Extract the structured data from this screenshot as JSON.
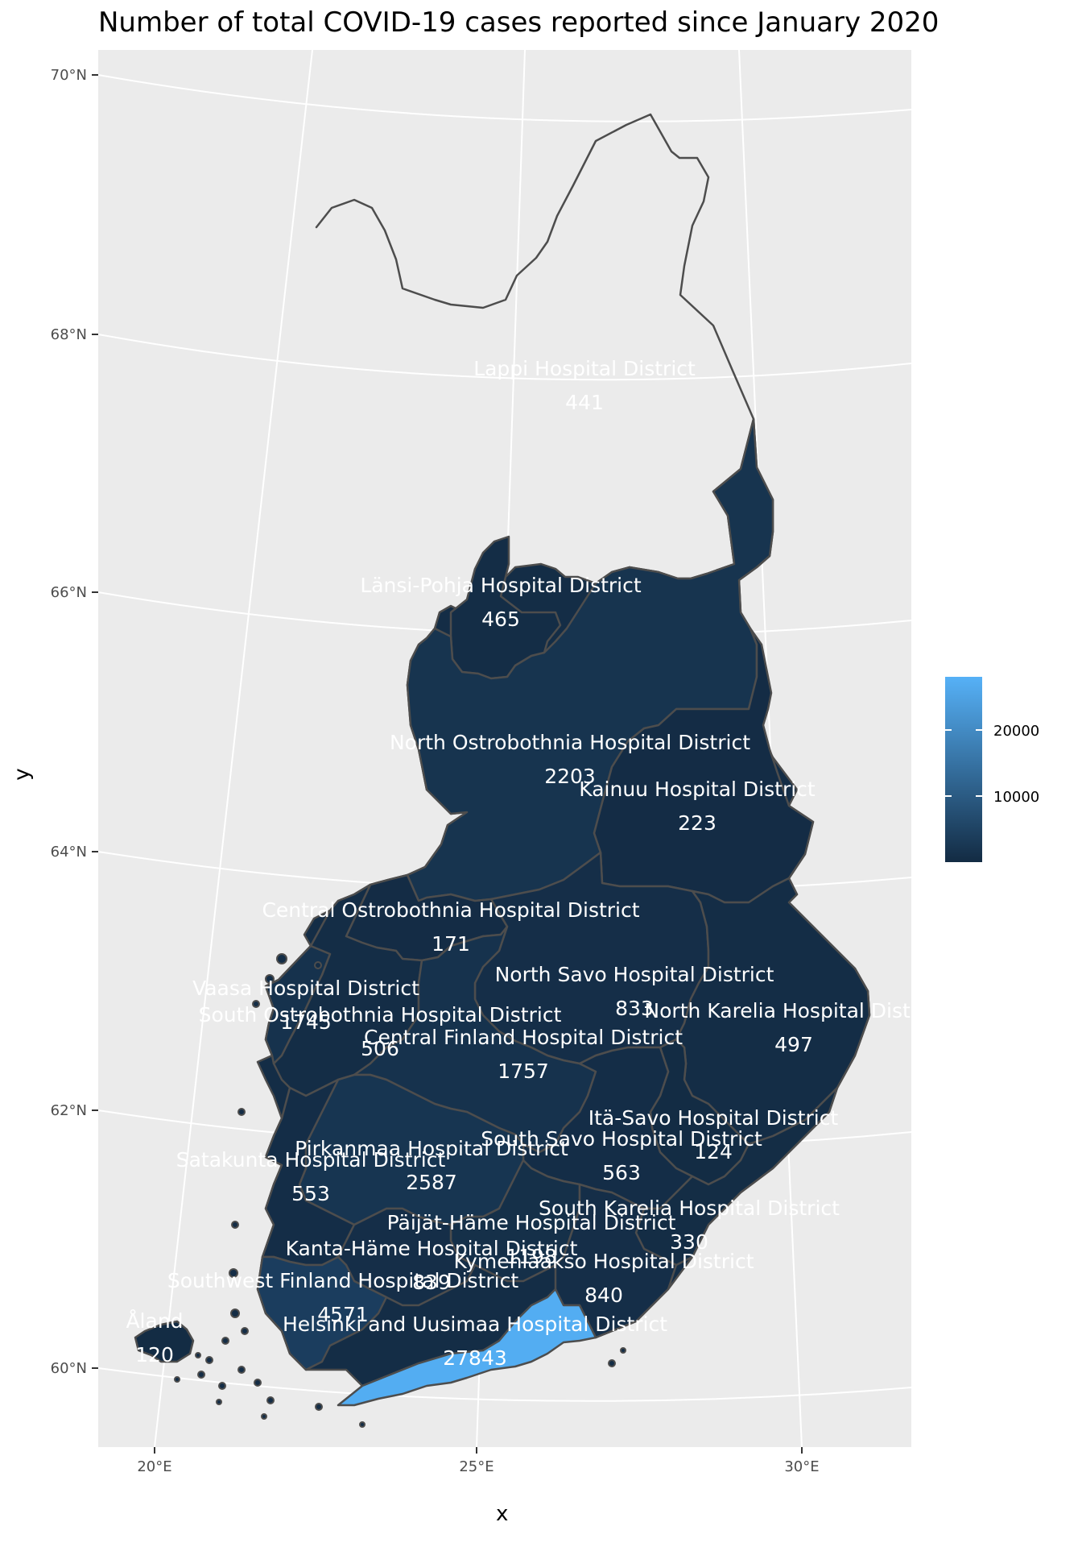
{
  "title": "Number of total COVID-19 cases reported since January 2020",
  "axes": {
    "x_title": "x",
    "y_title": "y",
    "x_ticks": [
      "20°E",
      "25°E",
      "30°E"
    ],
    "y_ticks": [
      "70°N",
      "68°N",
      "66°N",
      "64°N",
      "62°N",
      "60°N"
    ]
  },
  "colors": {
    "panel_background": "#ebebeb",
    "grid": "#ffffff",
    "border": "#4d4d4d",
    "scale_low": "#132b43",
    "scale_high": "#56b1f7"
  },
  "legend": {
    "ticks": [
      "20000",
      "10000"
    ],
    "placement": "right"
  },
  "regions": [
    {
      "id": "lappi",
      "name": "Lappi Hospital District",
      "cases": "441",
      "color": "#142d46"
    },
    {
      "id": "lansi-pohja",
      "name": "Länsi-Pohja Hospital District",
      "cases": "465",
      "color": "#142d46"
    },
    {
      "id": "north-ostrobothnia",
      "name": "North Ostrobothnia Hospital District",
      "cases": "2203",
      "color": "#17344f"
    },
    {
      "id": "kainuu",
      "name": "Kainuu Hospital District",
      "cases": "223",
      "color": "#142c45"
    },
    {
      "id": "central-ostrobothnia",
      "name": "Central Ostrobothnia Hospital District",
      "cases": "171",
      "color": "#142c45"
    },
    {
      "id": "vaasa",
      "name": "Vaasa Hospital District",
      "cases": "1745",
      "color": "#16324d"
    },
    {
      "id": "south-ostrobothnia",
      "name": "South Ostrobothnia Hospital District",
      "cases": "506",
      "color": "#142d46"
    },
    {
      "id": "north-savo",
      "name": "North Savo Hospital District",
      "cases": "833",
      "color": "#152e48"
    },
    {
      "id": "north-karelia",
      "name": "North Karelia Hospital District",
      "cases": "497",
      "color": "#142d46"
    },
    {
      "id": "central-finland",
      "name": "Central Finland Hospital District",
      "cases": "1757",
      "color": "#16324d"
    },
    {
      "id": "ita-savo",
      "name": "Itä-Savo Hospital District",
      "cases": "124",
      "color": "#132c44"
    },
    {
      "id": "south-savo",
      "name": "South Savo Hospital District",
      "cases": "563",
      "color": "#142d47"
    },
    {
      "id": "pirkanmaa",
      "name": "Pirkanmaa Hospital District",
      "cases": "2587",
      "color": "#173551"
    },
    {
      "id": "satakunta",
      "name": "Satakunta Hospital District",
      "cases": "553",
      "color": "#142d47"
    },
    {
      "id": "south-karelia",
      "name": "South Karelia Hospital District",
      "cases": "330",
      "color": "#142d45"
    },
    {
      "id": "paijat-hame",
      "name": "Päijät-Häme Hospital District",
      "cases": "1198",
      "color": "#153049"
    },
    {
      "id": "kanta-hame",
      "name": "Kanta-Häme Hospital District",
      "cases": "839",
      "color": "#152e48"
    },
    {
      "id": "kymenlaakso",
      "name": "Kymenlaakso Hospital District",
      "cases": "840",
      "color": "#152e48"
    },
    {
      "id": "southwest-finland",
      "name": "Southwest Finland Hospital District",
      "cases": "4571",
      "color": "#1b3d5e"
    },
    {
      "id": "aland",
      "name": "Åland",
      "cases": "120",
      "color": "#132c44"
    },
    {
      "id": "helsinki-uusimaa",
      "name": "Helsinki and Uusimaa Hospital District",
      "cases": "27843",
      "color": "#53adf2"
    }
  ]
}
